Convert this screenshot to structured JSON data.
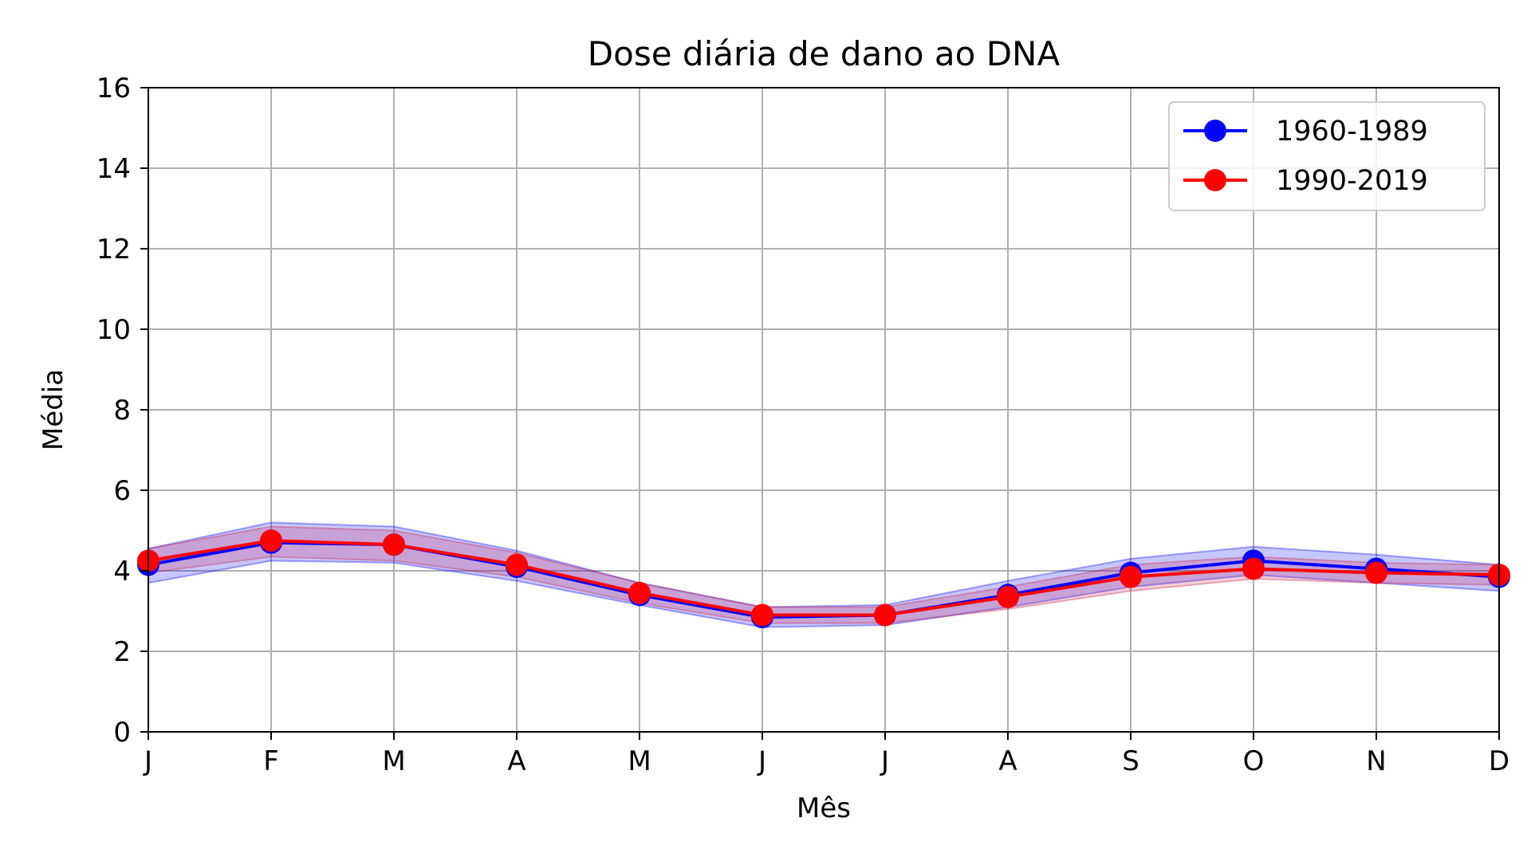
{
  "chart_data": {
    "type": "line",
    "title": "Dose diária de dano ao DNA",
    "xlabel": "Mês",
    "ylabel": "Média",
    "categories": [
      "J",
      "F",
      "M",
      "A",
      "M",
      "J",
      "J",
      "A",
      "S",
      "O",
      "N",
      "D"
    ],
    "ylim": [
      0,
      16
    ],
    "yticks": [
      0,
      2,
      4,
      6,
      8,
      10,
      12,
      14,
      16
    ],
    "grid": true,
    "legend_position": "top-right",
    "series": [
      {
        "name": "1960-1989",
        "color": "#0000ff",
        "band_color": "#0000ff",
        "values": [
          4.15,
          4.7,
          4.65,
          4.1,
          3.4,
          2.85,
          2.9,
          3.4,
          3.95,
          4.25,
          4.05,
          3.85
        ],
        "band_low": [
          3.7,
          4.25,
          4.2,
          3.75,
          3.15,
          2.6,
          2.65,
          3.1,
          3.6,
          3.9,
          3.7,
          3.5
        ],
        "band_high": [
          4.55,
          5.2,
          5.1,
          4.5,
          3.7,
          3.1,
          3.15,
          3.75,
          4.3,
          4.6,
          4.4,
          4.15
        ]
      },
      {
        "name": "1990-2019",
        "color": "#ff0000",
        "band_color": "#cc2244",
        "values": [
          4.25,
          4.75,
          4.65,
          4.15,
          3.45,
          2.9,
          2.9,
          3.35,
          3.85,
          4.05,
          3.95,
          3.9
        ],
        "band_low": [
          3.95,
          4.35,
          4.25,
          3.85,
          3.2,
          2.7,
          2.7,
          3.05,
          3.5,
          3.8,
          3.7,
          3.65
        ],
        "band_high": [
          4.55,
          5.1,
          5.0,
          4.45,
          3.7,
          3.1,
          3.1,
          3.6,
          4.15,
          4.35,
          4.2,
          4.15
        ]
      }
    ]
  }
}
